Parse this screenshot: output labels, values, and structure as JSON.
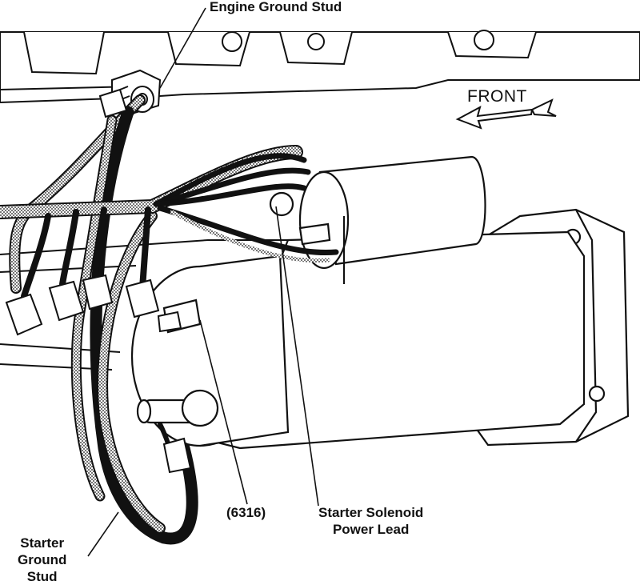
{
  "callouts": {
    "engine_ground_stud": "Engine Ground Stud",
    "front": "FRONT",
    "part_number": "(6316)",
    "starter_solenoid_power_lead": "Starter Solenoid\nPower Lead",
    "starter_ground_stud": "Starter\nGround\nStud"
  },
  "colors": {
    "line": "#111111",
    "fill": "#ffffff"
  }
}
